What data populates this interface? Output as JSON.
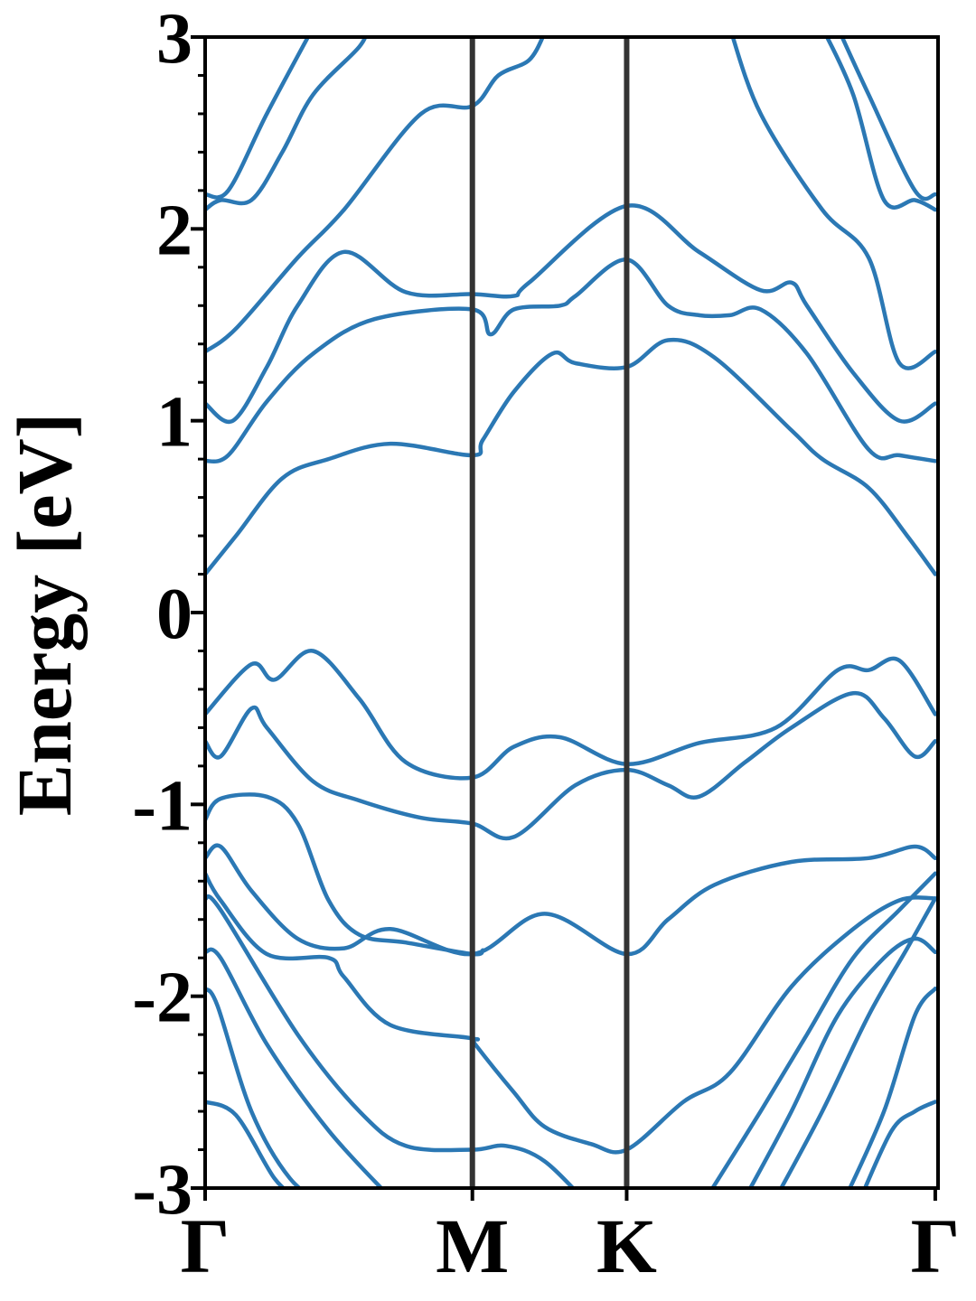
{
  "chart_data": {
    "type": "line",
    "title": "",
    "xlabel": "",
    "ylabel": "Energy [eV]",
    "ylim": [
      -3,
      3
    ],
    "xlim": [
      0,
      4.75
    ],
    "x_ticks": [
      {
        "label": "Γ",
        "x": 0
      },
      {
        "label": "M",
        "x": 1.732
      },
      {
        "label": "K",
        "x": 2.732
      },
      {
        "label": "Γ",
        "x": 4.732
      }
    ],
    "y_ticks": [
      {
        "label": "-3",
        "value": -3
      },
      {
        "label": "-2",
        "value": -2
      },
      {
        "label": "-1",
        "value": -1
      },
      {
        "label": "0",
        "value": 0
      },
      {
        "label": "1",
        "value": 1
      },
      {
        "label": "2",
        "value": 2
      },
      {
        "label": "3",
        "value": 3
      }
    ],
    "y_minor_step": 0.2,
    "vlines": [
      1.732,
      2.732
    ],
    "line_color": "#2b78b4",
    "vline_color": "#333333",
    "grid": false,
    "series": [
      {
        "points": [
          [
            0,
            -2.55
          ],
          [
            0.2,
            -2.62
          ],
          [
            0.45,
            -2.95
          ],
          [
            0.6,
            -3.05
          ]
        ]
      },
      {
        "points": [
          [
            0,
            -1.96
          ],
          [
            0.08,
            -2.05
          ],
          [
            0.3,
            -2.6
          ],
          [
            0.55,
            -2.95
          ],
          [
            0.8,
            -3.1
          ]
        ]
      },
      {
        "points": [
          [
            0,
            -1.77
          ],
          [
            0.1,
            -1.8
          ],
          [
            0.4,
            -2.25
          ],
          [
            0.8,
            -2.7
          ],
          [
            1.2,
            -3.05
          ]
        ]
      },
      {
        "points": [
          [
            0,
            -1.49
          ],
          [
            0.1,
            -1.55
          ],
          [
            0.6,
            -2.2
          ],
          [
            1.0,
            -2.6
          ],
          [
            1.3,
            -2.78
          ],
          [
            1.732,
            -2.8
          ],
          [
            1.95,
            -2.78
          ],
          [
            2.2,
            -2.86
          ],
          [
            2.5,
            -3.1
          ]
        ]
      },
      {
        "points": [
          [
            0,
            -1.36
          ],
          [
            0.1,
            -1.5
          ],
          [
            0.4,
            -1.78
          ],
          [
            0.8,
            -1.8
          ],
          [
            0.9,
            -1.9
          ],
          [
            1.2,
            -2.15
          ],
          [
            1.732,
            -2.22
          ],
          [
            1.75,
            -2.25
          ],
          [
            2.0,
            -2.5
          ],
          [
            2.2,
            -2.68
          ],
          [
            2.5,
            -2.77
          ],
          [
            2.732,
            -2.8
          ],
          [
            3.1,
            -2.55
          ],
          [
            3.4,
            -2.4
          ],
          [
            3.8,
            -1.95
          ],
          [
            4.2,
            -1.65
          ],
          [
            4.5,
            -1.5
          ],
          [
            4.732,
            -1.49
          ]
        ]
      },
      {
        "points": [
          [
            0,
            -1.28
          ],
          [
            0.1,
            -1.22
          ],
          [
            0.3,
            -1.45
          ],
          [
            0.6,
            -1.7
          ],
          [
            0.9,
            -1.75
          ],
          [
            1.2,
            -1.65
          ],
          [
            1.732,
            -1.78
          ],
          [
            2.2,
            -1.57
          ],
          [
            2.732,
            -1.78
          ],
          [
            3.0,
            -1.6
          ],
          [
            3.3,
            -1.42
          ],
          [
            3.8,
            -1.3
          ],
          [
            4.3,
            -1.28
          ],
          [
            4.6,
            -1.22
          ],
          [
            4.732,
            -1.28
          ]
        ]
      },
      {
        "points": [
          [
            0,
            -1.08
          ],
          [
            0.1,
            -0.97
          ],
          [
            0.4,
            -0.96
          ],
          [
            0.6,
            -1.1
          ],
          [
            0.8,
            -1.5
          ],
          [
            1.0,
            -1.68
          ],
          [
            1.3,
            -1.72
          ],
          [
            1.732,
            -1.78
          ],
          [
            1.8,
            -1.76
          ]
        ]
      },
      {
        "points": [
          [
            0,
            -0.67
          ],
          [
            0.1,
            -0.75
          ],
          [
            0.3,
            -0.5
          ],
          [
            0.4,
            -0.6
          ],
          [
            0.7,
            -0.88
          ],
          [
            1.0,
            -0.98
          ],
          [
            1.4,
            -1.07
          ],
          [
            1.732,
            -1.1
          ],
          [
            2.0,
            -1.17
          ],
          [
            2.4,
            -0.9
          ],
          [
            2.732,
            -0.82
          ],
          [
            3.0,
            -0.9
          ],
          [
            3.2,
            -0.96
          ],
          [
            3.5,
            -0.78
          ],
          [
            3.8,
            -0.6
          ],
          [
            4.2,
            -0.42
          ],
          [
            4.4,
            -0.55
          ],
          [
            4.6,
            -0.75
          ],
          [
            4.732,
            -0.67
          ]
        ]
      },
      {
        "points": [
          [
            0,
            -0.53
          ],
          [
            0.3,
            -0.27
          ],
          [
            0.45,
            -0.35
          ],
          [
            0.7,
            -0.2
          ],
          [
            1.0,
            -0.45
          ],
          [
            1.3,
            -0.78
          ],
          [
            1.732,
            -0.86
          ],
          [
            2.0,
            -0.7
          ],
          [
            2.3,
            -0.65
          ],
          [
            2.732,
            -0.79
          ],
          [
            3.2,
            -0.68
          ],
          [
            3.7,
            -0.6
          ],
          [
            4.1,
            -0.3
          ],
          [
            4.3,
            -0.3
          ],
          [
            4.5,
            -0.25
          ],
          [
            4.732,
            -0.53
          ]
        ]
      },
      {
        "points": [
          [
            0,
            0.2
          ],
          [
            0.2,
            0.4
          ],
          [
            0.5,
            0.7
          ],
          [
            0.8,
            0.8
          ],
          [
            1.2,
            0.88
          ],
          [
            1.732,
            0.82
          ],
          [
            1.8,
            0.9
          ],
          [
            2.0,
            1.15
          ],
          [
            2.25,
            1.35
          ],
          [
            2.4,
            1.3
          ],
          [
            2.732,
            1.28
          ],
          [
            3.0,
            1.42
          ],
          [
            3.3,
            1.33
          ],
          [
            3.8,
            0.95
          ],
          [
            4.0,
            0.8
          ],
          [
            4.3,
            0.65
          ],
          [
            4.55,
            0.4
          ],
          [
            4.732,
            0.2
          ]
        ]
      },
      {
        "points": [
          [
            0,
            0.79
          ],
          [
            0.15,
            0.82
          ],
          [
            0.4,
            1.1
          ],
          [
            0.7,
            1.35
          ],
          [
            1.1,
            1.53
          ],
          [
            1.732,
            1.58
          ],
          [
            1.85,
            1.45
          ],
          [
            2.0,
            1.58
          ],
          [
            2.3,
            1.6
          ],
          [
            2.4,
            1.65
          ],
          [
            2.732,
            1.84
          ],
          [
            3.0,
            1.6
          ],
          [
            3.2,
            1.55
          ],
          [
            3.4,
            1.55
          ],
          [
            3.6,
            1.58
          ],
          [
            3.9,
            1.35
          ],
          [
            4.3,
            0.85
          ],
          [
            4.5,
            0.82
          ],
          [
            4.732,
            0.79
          ]
        ]
      },
      {
        "points": [
          [
            0,
            1.09
          ],
          [
            0.18,
            1.0
          ],
          [
            0.4,
            1.28
          ],
          [
            0.6,
            1.6
          ],
          [
            0.9,
            1.88
          ],
          [
            1.3,
            1.67
          ],
          [
            1.732,
            1.66
          ],
          [
            2.0,
            1.65
          ],
          [
            2.1,
            1.72
          ],
          [
            2.732,
            2.12
          ],
          [
            3.2,
            1.88
          ],
          [
            3.6,
            1.68
          ],
          [
            3.8,
            1.72
          ],
          [
            3.9,
            1.6
          ],
          [
            4.2,
            1.25
          ],
          [
            4.5,
            1.0
          ],
          [
            4.732,
            1.09
          ]
        ]
      },
      {
        "points": [
          [
            0,
            1.36
          ],
          [
            0.2,
            1.48
          ],
          [
            0.6,
            1.85
          ],
          [
            0.9,
            2.1
          ],
          [
            1.4,
            2.6
          ],
          [
            1.732,
            2.64
          ],
          [
            1.9,
            2.8
          ],
          [
            2.1,
            2.88
          ],
          [
            2.2,
            3.02
          ]
        ]
      },
      {
        "points": [
          [
            0,
            2.1
          ],
          [
            0.1,
            2.15
          ],
          [
            0.3,
            2.15
          ],
          [
            0.5,
            2.4
          ],
          [
            0.7,
            2.7
          ],
          [
            1.0,
            2.95
          ],
          [
            1.05,
            3.05
          ]
        ]
      },
      {
        "points": [
          [
            0,
            2.18
          ],
          [
            0.15,
            2.2
          ],
          [
            0.4,
            2.6
          ],
          [
            0.7,
            3.05
          ]
        ]
      },
      {
        "points": [
          [
            3.4,
            3.05
          ],
          [
            3.6,
            2.6
          ],
          [
            4.0,
            2.1
          ],
          [
            4.3,
            1.85
          ],
          [
            4.5,
            1.3
          ],
          [
            4.732,
            1.36
          ]
        ]
      },
      {
        "points": [
          [
            4.0,
            3.05
          ],
          [
            4.2,
            2.7
          ],
          [
            4.4,
            2.15
          ],
          [
            4.6,
            2.15
          ],
          [
            4.732,
            2.1
          ]
        ]
      },
      {
        "points": [
          [
            4.1,
            3.05
          ],
          [
            4.3,
            2.7
          ],
          [
            4.6,
            2.2
          ],
          [
            4.732,
            2.18
          ]
        ]
      },
      {
        "points": [
          [
            3.25,
            -3.05
          ],
          [
            3.6,
            -2.6
          ],
          [
            3.9,
            -2.2
          ],
          [
            4.2,
            -1.8
          ],
          [
            4.5,
            -1.55
          ],
          [
            4.732,
            -1.36
          ]
        ]
      },
      {
        "points": [
          [
            3.5,
            -3.05
          ],
          [
            3.8,
            -2.6
          ],
          [
            4.1,
            -2.1
          ],
          [
            4.4,
            -1.8
          ],
          [
            4.6,
            -1.7
          ],
          [
            4.732,
            -1.77
          ]
        ]
      },
      {
        "points": [
          [
            3.7,
            -3.05
          ],
          [
            4.0,
            -2.6
          ],
          [
            4.3,
            -2.1
          ],
          [
            4.55,
            -1.75
          ],
          [
            4.732,
            -1.49
          ]
        ]
      },
      {
        "points": [
          [
            4.15,
            -3.05
          ],
          [
            4.4,
            -2.6
          ],
          [
            4.6,
            -2.1
          ],
          [
            4.732,
            -1.96
          ]
        ]
      },
      {
        "points": [
          [
            4.25,
            -3.05
          ],
          [
            4.45,
            -2.7
          ],
          [
            4.6,
            -2.6
          ],
          [
            4.732,
            -2.55
          ]
        ]
      }
    ]
  }
}
